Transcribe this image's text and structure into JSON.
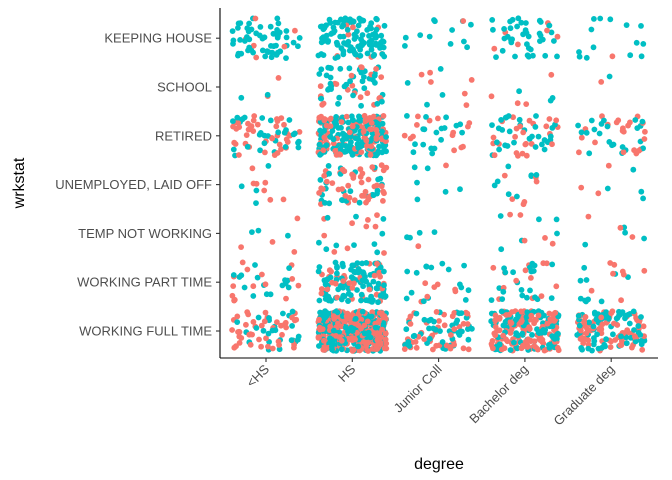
{
  "chart_data": {
    "type": "scatter",
    "title": "",
    "xlabel": "degree",
    "ylabel": "wrkstat",
    "x_categories": [
      "<HS",
      "HS",
      "Junior Coll",
      "Bachelor deg",
      "Graduate deg"
    ],
    "y_categories": [
      "WORKING FULL TIME",
      "WORKING PART TIME",
      "TEMP NOT WORKING",
      "UNEMPLOYED, LAID OFF",
      "RETIRED",
      "SCHOOL",
      "KEEPING HOUSE"
    ],
    "jitter": true,
    "legend": "none",
    "grid": false,
    "series_colors": {
      "group_a": "#F8766D",
      "group_b": "#00BFC4"
    },
    "approx_point_counts": [
      {
        "degree": "<HS",
        "wrkstat": "KEEPING HOUSE",
        "red": 6,
        "teal": 55
      },
      {
        "degree": "<HS",
        "wrkstat": "SCHOOL",
        "red": 2,
        "teal": 2
      },
      {
        "degree": "<HS",
        "wrkstat": "RETIRED",
        "red": 40,
        "teal": 28
      },
      {
        "degree": "<HS",
        "wrkstat": "UNEMPLOYED, LAID OFF",
        "red": 7,
        "teal": 4
      },
      {
        "degree": "<HS",
        "wrkstat": "TEMP NOT WORKING",
        "red": 4,
        "teal": 3
      },
      {
        "degree": "<HS",
        "wrkstat": "WORKING PART TIME",
        "red": 14,
        "teal": 16
      },
      {
        "degree": "<HS",
        "wrkstat": "WORKING FULL TIME",
        "red": 45,
        "teal": 25
      },
      {
        "degree": "HS",
        "wrkstat": "KEEPING HOUSE",
        "red": 8,
        "teal": 110
      },
      {
        "degree": "HS",
        "wrkstat": "SCHOOL",
        "red": 22,
        "teal": 40
      },
      {
        "degree": "HS",
        "wrkstat": "RETIRED",
        "red": 120,
        "teal": 150
      },
      {
        "degree": "HS",
        "wrkstat": "UNEMPLOYED, LAID OFF",
        "red": 45,
        "teal": 28
      },
      {
        "degree": "HS",
        "wrkstat": "TEMP NOT WORKING",
        "red": 10,
        "teal": 10
      },
      {
        "degree": "HS",
        "wrkstat": "WORKING PART TIME",
        "red": 40,
        "teal": 100
      },
      {
        "degree": "HS",
        "wrkstat": "WORKING FULL TIME",
        "red": 260,
        "teal": 210
      },
      {
        "degree": "Junior Coll",
        "wrkstat": "KEEPING HOUSE",
        "red": 1,
        "teal": 12
      },
      {
        "degree": "Junior Coll",
        "wrkstat": "SCHOOL",
        "red": 6,
        "teal": 4
      },
      {
        "degree": "Junior Coll",
        "wrkstat": "RETIRED",
        "red": 14,
        "teal": 18
      },
      {
        "degree": "Junior Coll",
        "wrkstat": "UNEMPLOYED, LAID OFF",
        "red": 1,
        "teal": 6
      },
      {
        "degree": "Junior Coll",
        "wrkstat": "TEMP NOT WORKING",
        "red": 1,
        "teal": 4
      },
      {
        "degree": "Junior Coll",
        "wrkstat": "WORKING PART TIME",
        "red": 7,
        "teal": 16
      },
      {
        "degree": "Junior Coll",
        "wrkstat": "WORKING FULL TIME",
        "red": 45,
        "teal": 45
      },
      {
        "degree": "Bachelor deg",
        "wrkstat": "KEEPING HOUSE",
        "red": 6,
        "teal": 40
      },
      {
        "degree": "Bachelor deg",
        "wrkstat": "SCHOOL",
        "red": 4,
        "teal": 3
      },
      {
        "degree": "Bachelor deg",
        "wrkstat": "RETIRED",
        "red": 25,
        "teal": 32
      },
      {
        "degree": "Bachelor deg",
        "wrkstat": "UNEMPLOYED, LAID OFF",
        "red": 6,
        "teal": 8
      },
      {
        "degree": "Bachelor deg",
        "wrkstat": "TEMP NOT WORKING",
        "red": 5,
        "teal": 6
      },
      {
        "degree": "Bachelor deg",
        "wrkstat": "WORKING PART TIME",
        "red": 14,
        "teal": 22
      },
      {
        "degree": "Bachelor deg",
        "wrkstat": "WORKING FULL TIME",
        "red": 140,
        "teal": 110
      },
      {
        "degree": "Graduate deg",
        "wrkstat": "KEEPING HOUSE",
        "red": 1,
        "teal": 14
      },
      {
        "degree": "Graduate deg",
        "wrkstat": "SCHOOL",
        "red": 1,
        "teal": 1
      },
      {
        "degree": "Graduate deg",
        "wrkstat": "RETIRED",
        "red": 22,
        "teal": 22
      },
      {
        "degree": "Graduate deg",
        "wrkstat": "UNEMPLOYED, LAID OFF",
        "red": 3,
        "teal": 4
      },
      {
        "degree": "Graduate deg",
        "wrkstat": "TEMP NOT WORKING",
        "red": 3,
        "teal": 4
      },
      {
        "degree": "Graduate deg",
        "wrkstat": "WORKING PART TIME",
        "red": 8,
        "teal": 10
      },
      {
        "degree": "Graduate deg",
        "wrkstat": "WORKING FULL TIME",
        "red": 85,
        "teal": 70
      }
    ]
  }
}
